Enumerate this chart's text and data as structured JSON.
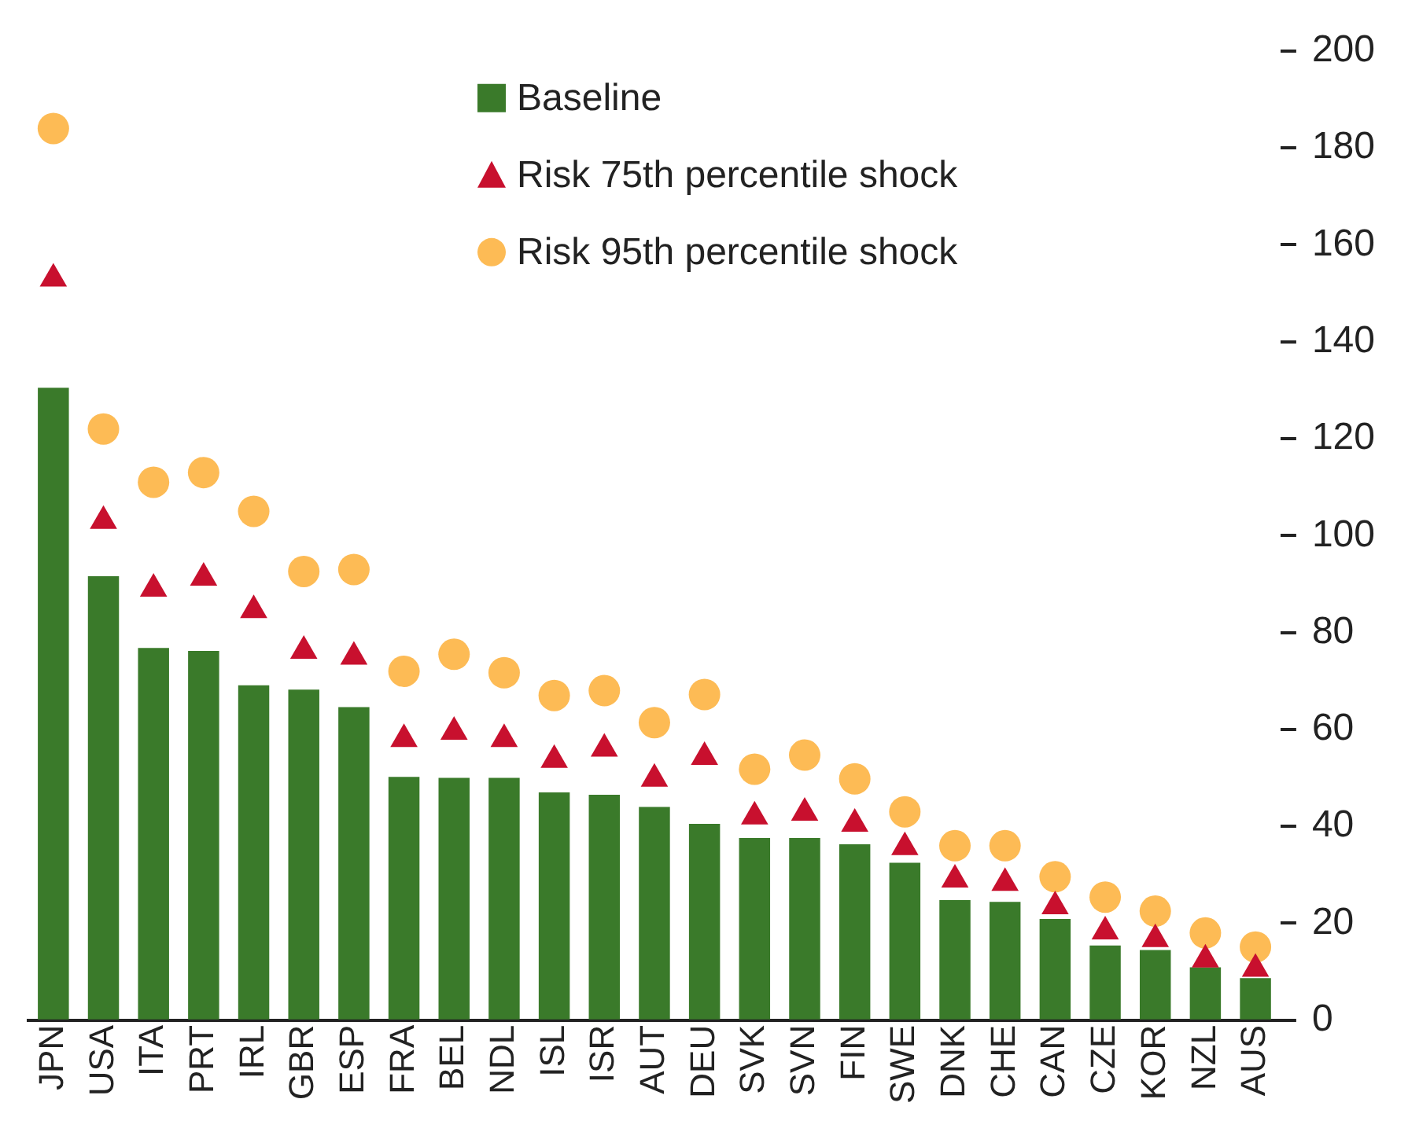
{
  "chart_data": {
    "type": "bar",
    "categories": [
      "JPN",
      "USA",
      "ITA",
      "PRT",
      "IRL",
      "GBR",
      "ESP",
      "FRA",
      "BEL",
      "NDL",
      "ISL",
      "ISR",
      "AUT",
      "DEU",
      "SVK",
      "SVN",
      "FIN",
      "SWE",
      "DNK",
      "CHE",
      "CAN",
      "CZE",
      "KOR",
      "NZL",
      "AUS"
    ],
    "series": [
      {
        "name": "Baseline",
        "color": "#3a7a2a",
        "values": [
          130.5,
          91.6,
          76.8,
          76.2,
          69.1,
          68.2,
          64.6,
          50.2,
          50,
          50,
          47,
          46.5,
          44,
          40.5,
          37.6,
          37.6,
          36.3,
          32.5,
          24.8,
          24.4,
          20.9,
          15.4,
          14.5,
          10.9,
          8.7
        ]
      },
      {
        "name": "Risk 75th percentile shock",
        "type": "scatter",
        "marker": "triangle",
        "color": "#c8102e",
        "values": [
          153,
          103,
          89,
          91.3,
          84.6,
          76.2,
          75,
          58,
          59.5,
          58,
          53.7,
          56,
          49.8,
          54.3,
          42,
          42.8,
          40.5,
          35.7,
          29,
          28.3,
          23.5,
          18.3,
          16.7,
          12.5,
          10.6
        ]
      },
      {
        "name": "Risk 95th percentile shock",
        "type": "scatter",
        "marker": "circle",
        "color": "#fdbb55",
        "values": [
          184,
          122,
          111,
          113,
          105,
          92.6,
          93,
          72,
          75.5,
          71.7,
          67,
          68,
          61.4,
          67.2,
          51.8,
          54.7,
          49.8,
          43,
          36,
          36,
          29.6,
          25.4,
          22.5,
          18,
          15.1
        ]
      }
    ],
    "ylim": [
      0,
      200
    ],
    "yticks": [
      0,
      20,
      40,
      60,
      80,
      100,
      120,
      140,
      160,
      180,
      200
    ],
    "grid": false,
    "legend": "top"
  }
}
